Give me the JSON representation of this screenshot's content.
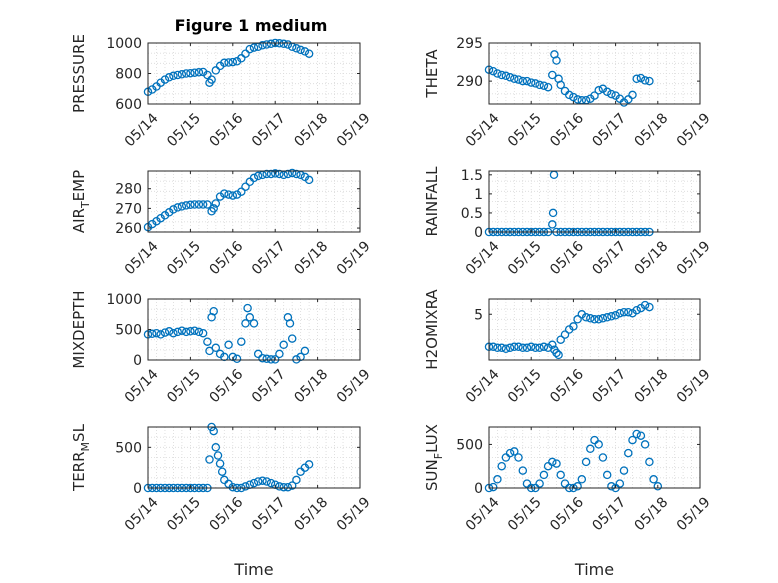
{
  "figure": {
    "title": "Figure 1 medium",
    "marker_color": "#0072BD",
    "grid": "minor dotted"
  },
  "chart_data": [
    {
      "type": "scatter",
      "ylabel": "PRESSURE",
      "xlabel": "",
      "xlim": [
        "05/14",
        "05/19"
      ],
      "ylim": [
        600,
        1000
      ],
      "xticks": [
        "05/14",
        "05/15",
        "05/16",
        "05/17",
        "05/18",
        "05/19"
      ],
      "yticks": [
        "600",
        "800",
        "1000"
      ],
      "points": [
        [
          0,
          680
        ],
        [
          0.1,
          695
        ],
        [
          0.2,
          715
        ],
        [
          0.3,
          740
        ],
        [
          0.4,
          760
        ],
        [
          0.5,
          775
        ],
        [
          0.6,
          785
        ],
        [
          0.7,
          790
        ],
        [
          0.8,
          795
        ],
        [
          0.9,
          800
        ],
        [
          1.0,
          802
        ],
        [
          1.1,
          805
        ],
        [
          1.2,
          808
        ],
        [
          1.3,
          810
        ],
        [
          1.4,
          790
        ],
        [
          1.45,
          740
        ],
        [
          1.5,
          760
        ],
        [
          1.6,
          820
        ],
        [
          1.7,
          850
        ],
        [
          1.8,
          870
        ],
        [
          1.9,
          872
        ],
        [
          2.0,
          875
        ],
        [
          2.1,
          880
        ],
        [
          2.2,
          900
        ],
        [
          2.3,
          930
        ],
        [
          2.4,
          960
        ],
        [
          2.5,
          970
        ],
        [
          2.6,
          975
        ],
        [
          2.7,
          985
        ],
        [
          2.8,
          990
        ],
        [
          2.9,
          995
        ],
        [
          3.0,
          1000
        ],
        [
          3.1,
          998
        ],
        [
          3.2,
          995
        ],
        [
          3.3,
          990
        ],
        [
          3.4,
          975
        ],
        [
          3.5,
          965
        ],
        [
          3.6,
          955
        ],
        [
          3.7,
          945
        ],
        [
          3.8,
          930
        ]
      ]
    },
    {
      "type": "scatter",
      "ylabel": "THETA",
      "xlabel": "",
      "xlim": [
        "05/14",
        "05/19"
      ],
      "ylim": [
        287,
        295
      ],
      "xticks": [
        "05/14",
        "05/15",
        "05/16",
        "05/17",
        "05/18",
        "05/19"
      ],
      "yticks": [
        "290",
        "295"
      ],
      "points": [
        [
          0,
          291.5
        ],
        [
          0.1,
          291.3
        ],
        [
          0.2,
          291
        ],
        [
          0.3,
          290.8
        ],
        [
          0.4,
          290.7
        ],
        [
          0.5,
          290.5
        ],
        [
          0.6,
          290.3
        ],
        [
          0.7,
          290.2
        ],
        [
          0.8,
          290
        ],
        [
          0.9,
          290
        ],
        [
          1.0,
          289.8
        ],
        [
          1.1,
          289.7
        ],
        [
          1.2,
          289.5
        ],
        [
          1.3,
          289.4
        ],
        [
          1.4,
          289.2
        ],
        [
          1.5,
          290.8
        ],
        [
          1.55,
          293.5
        ],
        [
          1.6,
          292.7
        ],
        [
          1.65,
          290.3
        ],
        [
          1.7,
          289.5
        ],
        [
          1.8,
          288.7
        ],
        [
          1.9,
          288.2
        ],
        [
          2.0,
          287.9
        ],
        [
          2.1,
          287.6
        ],
        [
          2.2,
          287.5
        ],
        [
          2.3,
          287.5
        ],
        [
          2.4,
          287.7
        ],
        [
          2.5,
          288.1
        ],
        [
          2.6,
          288.8
        ],
        [
          2.7,
          289
        ],
        [
          2.8,
          288.6
        ],
        [
          2.9,
          288.3
        ],
        [
          3.0,
          288.1
        ],
        [
          3.1,
          287.7
        ],
        [
          3.2,
          287.2
        ],
        [
          3.3,
          287.6
        ],
        [
          3.4,
          288.2
        ],
        [
          3.5,
          290.3
        ],
        [
          3.6,
          290.4
        ],
        [
          3.7,
          290.1
        ],
        [
          3.8,
          290
        ]
      ]
    },
    {
      "type": "scatter",
      "ylabel_base": "AIR",
      "ylabel_sub": "T",
      "ylabel_rest": "EMP",
      "xlabel": "",
      "xlim": [
        "05/14",
        "05/19"
      ],
      "ylim": [
        258,
        289
      ],
      "xticks": [
        "05/14",
        "05/15",
        "05/16",
        "05/17",
        "05/18",
        "05/19"
      ],
      "yticks": [
        "260",
        "270",
        "280"
      ],
      "points": [
        [
          0,
          260.5
        ],
        [
          0.1,
          262
        ],
        [
          0.2,
          263.5
        ],
        [
          0.3,
          265
        ],
        [
          0.4,
          266.5
        ],
        [
          0.5,
          268
        ],
        [
          0.6,
          269.5
        ],
        [
          0.7,
          270.5
        ],
        [
          0.8,
          271
        ],
        [
          0.9,
          271.5
        ],
        [
          1.0,
          271.8
        ],
        [
          1.1,
          272
        ],
        [
          1.2,
          272
        ],
        [
          1.3,
          272
        ],
        [
          1.4,
          272
        ],
        [
          1.5,
          268.5
        ],
        [
          1.55,
          270
        ],
        [
          1.6,
          272.5
        ],
        [
          1.7,
          276
        ],
        [
          1.8,
          277.5
        ],
        [
          1.9,
          277
        ],
        [
          2.0,
          276.5
        ],
        [
          2.1,
          277
        ],
        [
          2.2,
          278.5
        ],
        [
          2.3,
          281
        ],
        [
          2.4,
          283.5
        ],
        [
          2.5,
          285.5
        ],
        [
          2.6,
          286.5
        ],
        [
          2.7,
          287
        ],
        [
          2.8,
          287.5
        ],
        [
          2.9,
          287.5
        ],
        [
          3.0,
          287.8
        ],
        [
          3.1,
          287.5
        ],
        [
          3.2,
          287
        ],
        [
          3.3,
          287.5
        ],
        [
          3.4,
          288
        ],
        [
          3.5,
          287.5
        ],
        [
          3.6,
          287
        ],
        [
          3.7,
          286
        ],
        [
          3.8,
          284.5
        ]
      ]
    },
    {
      "type": "scatter",
      "ylabel": "RAINFALL",
      "xlabel": "",
      "xlim": [
        "05/14",
        "05/19"
      ],
      "ylim": [
        0,
        1.6
      ],
      "xticks": [
        "05/14",
        "05/15",
        "05/16",
        "05/17",
        "05/18",
        "05/19"
      ],
      "yticks": [
        "0",
        "0.5",
        "1",
        "1.5"
      ],
      "points": [
        [
          0,
          0
        ],
        [
          0.1,
          0
        ],
        [
          0.2,
          0
        ],
        [
          0.3,
          0
        ],
        [
          0.4,
          0
        ],
        [
          0.5,
          0
        ],
        [
          0.6,
          0
        ],
        [
          0.7,
          0
        ],
        [
          0.8,
          0
        ],
        [
          0.9,
          0
        ],
        [
          1.0,
          0
        ],
        [
          1.1,
          0
        ],
        [
          1.2,
          0
        ],
        [
          1.3,
          0
        ],
        [
          1.4,
          0
        ],
        [
          1.5,
          0.2
        ],
        [
          1.52,
          0.5
        ],
        [
          1.54,
          1.5
        ],
        [
          1.6,
          0
        ],
        [
          1.7,
          0
        ],
        [
          1.8,
          0
        ],
        [
          1.9,
          0
        ],
        [
          2.0,
          0
        ],
        [
          2.1,
          0
        ],
        [
          2.2,
          0
        ],
        [
          2.3,
          0
        ],
        [
          2.4,
          0
        ],
        [
          2.5,
          0
        ],
        [
          2.6,
          0
        ],
        [
          2.7,
          0
        ],
        [
          2.8,
          0
        ],
        [
          2.9,
          0
        ],
        [
          3.0,
          0
        ],
        [
          3.1,
          0
        ],
        [
          3.2,
          0
        ],
        [
          3.3,
          0
        ],
        [
          3.4,
          0
        ],
        [
          3.5,
          0
        ],
        [
          3.6,
          0
        ],
        [
          3.7,
          0
        ],
        [
          3.8,
          0
        ]
      ]
    },
    {
      "type": "scatter",
      "ylabel": "MIXDEPTH",
      "xlabel": "",
      "xlim": [
        "05/14",
        "05/19"
      ],
      "ylim": [
        0,
        1000
      ],
      "xticks": [
        "05/14",
        "05/15",
        "05/16",
        "05/17",
        "05/18",
        "05/19"
      ],
      "yticks": [
        "0",
        "500",
        "1000"
      ],
      "points": [
        [
          0,
          420
        ],
        [
          0.1,
          430
        ],
        [
          0.2,
          440
        ],
        [
          0.3,
          420
        ],
        [
          0.4,
          450
        ],
        [
          0.5,
          470
        ],
        [
          0.6,
          440
        ],
        [
          0.7,
          460
        ],
        [
          0.8,
          480
        ],
        [
          0.9,
          460
        ],
        [
          1.0,
          470
        ],
        [
          1.1,
          480
        ],
        [
          1.2,
          460
        ],
        [
          1.3,
          440
        ],
        [
          1.4,
          300
        ],
        [
          1.45,
          150
        ],
        [
          1.5,
          700
        ],
        [
          1.55,
          800
        ],
        [
          1.6,
          200
        ],
        [
          1.7,
          100
        ],
        [
          1.8,
          50
        ],
        [
          1.9,
          250
        ],
        [
          2.0,
          50
        ],
        [
          2.1,
          20
        ],
        [
          2.2,
          300
        ],
        [
          2.3,
          600
        ],
        [
          2.35,
          850
        ],
        [
          2.4,
          700
        ],
        [
          2.5,
          600
        ],
        [
          2.6,
          100
        ],
        [
          2.7,
          30
        ],
        [
          2.8,
          20
        ],
        [
          2.9,
          10
        ],
        [
          3.0,
          10
        ],
        [
          3.1,
          100
        ],
        [
          3.2,
          250
        ],
        [
          3.3,
          700
        ],
        [
          3.35,
          600
        ],
        [
          3.4,
          350
        ],
        [
          3.5,
          10
        ],
        [
          3.6,
          50
        ],
        [
          3.7,
          150
        ]
      ]
    },
    {
      "type": "scatter",
      "ylabel": "H2OMIXRA",
      "xlabel": "",
      "xlim": [
        "05/14",
        "05/19"
      ],
      "ylim": [
        0.5,
        6.5
      ],
      "xticks": [
        "05/14",
        "05/15",
        "05/16",
        "05/17",
        "05/18",
        "05/19"
      ],
      "yticks": [
        "5"
      ],
      "points": [
        [
          0,
          1.8
        ],
        [
          0.1,
          1.8
        ],
        [
          0.2,
          1.7
        ],
        [
          0.3,
          1.7
        ],
        [
          0.4,
          1.6
        ],
        [
          0.5,
          1.7
        ],
        [
          0.6,
          1.8
        ],
        [
          0.7,
          1.8
        ],
        [
          0.8,
          1.7
        ],
        [
          0.9,
          1.7
        ],
        [
          1.0,
          1.8
        ],
        [
          1.1,
          1.7
        ],
        [
          1.2,
          1.7
        ],
        [
          1.3,
          1.8
        ],
        [
          1.4,
          1.7
        ],
        [
          1.5,
          2.0
        ],
        [
          1.55,
          1.5
        ],
        [
          1.6,
          1.2
        ],
        [
          1.65,
          1.0
        ],
        [
          1.7,
          2.5
        ],
        [
          1.8,
          3.0
        ],
        [
          1.9,
          3.5
        ],
        [
          2.0,
          3.8
        ],
        [
          2.1,
          4.5
        ],
        [
          2.2,
          5.0
        ],
        [
          2.3,
          4.7
        ],
        [
          2.4,
          4.6
        ],
        [
          2.5,
          4.5
        ],
        [
          2.6,
          4.5
        ],
        [
          2.7,
          4.6
        ],
        [
          2.8,
          4.7
        ],
        [
          2.9,
          4.8
        ],
        [
          3.0,
          4.9
        ],
        [
          3.1,
          5.1
        ],
        [
          3.2,
          5.2
        ],
        [
          3.3,
          5.2
        ],
        [
          3.4,
          5.1
        ],
        [
          3.5,
          5.4
        ],
        [
          3.6,
          5.6
        ],
        [
          3.7,
          5.9
        ],
        [
          3.8,
          5.7
        ]
      ]
    },
    {
      "type": "scatter",
      "ylabel_base": "TERR",
      "ylabel_sub": "M",
      "ylabel_rest": "SL",
      "xlabel": "Time",
      "xlim": [
        "05/14",
        "05/19"
      ],
      "ylim": [
        0,
        750
      ],
      "xticks": [
        "05/14",
        "05/15",
        "05/16",
        "05/17",
        "05/18",
        "05/19"
      ],
      "yticks": [
        "0",
        "500"
      ],
      "points": [
        [
          0,
          0
        ],
        [
          0.1,
          0
        ],
        [
          0.2,
          0
        ],
        [
          0.3,
          0
        ],
        [
          0.4,
          0
        ],
        [
          0.5,
          0
        ],
        [
          0.6,
          0
        ],
        [
          0.7,
          0
        ],
        [
          0.8,
          0
        ],
        [
          0.9,
          0
        ],
        [
          1.0,
          0
        ],
        [
          1.1,
          0
        ],
        [
          1.2,
          0
        ],
        [
          1.3,
          0
        ],
        [
          1.4,
          0
        ],
        [
          1.45,
          350
        ],
        [
          1.5,
          750
        ],
        [
          1.55,
          700
        ],
        [
          1.6,
          500
        ],
        [
          1.65,
          400
        ],
        [
          1.7,
          300
        ],
        [
          1.75,
          200
        ],
        [
          1.8,
          100
        ],
        [
          1.9,
          50
        ],
        [
          2.0,
          10
        ],
        [
          2.1,
          0
        ],
        [
          2.2,
          0
        ],
        [
          2.3,
          20
        ],
        [
          2.4,
          40
        ],
        [
          2.5,
          60
        ],
        [
          2.6,
          80
        ],
        [
          2.7,
          90
        ],
        [
          2.8,
          80
        ],
        [
          2.9,
          60
        ],
        [
          3.0,
          40
        ],
        [
          3.1,
          20
        ],
        [
          3.2,
          10
        ],
        [
          3.3,
          10
        ],
        [
          3.4,
          30
        ],
        [
          3.5,
          100
        ],
        [
          3.6,
          200
        ],
        [
          3.7,
          250
        ],
        [
          3.8,
          290
        ]
      ]
    },
    {
      "type": "scatter",
      "ylabel_base": "SUN",
      "ylabel_sub": "F",
      "ylabel_rest": "LUX",
      "xlabel": "Time",
      "xlim": [
        "05/14",
        "05/19"
      ],
      "ylim": [
        0,
        700
      ],
      "xticks": [
        "05/14",
        "05/15",
        "05/16",
        "05/17",
        "05/18",
        "05/19"
      ],
      "yticks": [
        "0",
        "500"
      ],
      "points": [
        [
          0,
          0
        ],
        [
          0.1,
          10
        ],
        [
          0.2,
          100
        ],
        [
          0.3,
          250
        ],
        [
          0.4,
          350
        ],
        [
          0.5,
          400
        ],
        [
          0.6,
          420
        ],
        [
          0.7,
          350
        ],
        [
          0.8,
          200
        ],
        [
          0.9,
          50
        ],
        [
          1.0,
          0
        ],
        [
          1.1,
          0
        ],
        [
          1.2,
          50
        ],
        [
          1.3,
          150
        ],
        [
          1.4,
          250
        ],
        [
          1.5,
          300
        ],
        [
          1.6,
          280
        ],
        [
          1.7,
          150
        ],
        [
          1.8,
          50
        ],
        [
          1.9,
          0
        ],
        [
          2.0,
          0
        ],
        [
          2.1,
          20
        ],
        [
          2.2,
          100
        ],
        [
          2.3,
          300
        ],
        [
          2.4,
          450
        ],
        [
          2.5,
          550
        ],
        [
          2.6,
          500
        ],
        [
          2.7,
          350
        ],
        [
          2.8,
          150
        ],
        [
          2.9,
          20
        ],
        [
          3.0,
          0
        ],
        [
          3.1,
          50
        ],
        [
          3.2,
          200
        ],
        [
          3.3,
          400
        ],
        [
          3.4,
          550
        ],
        [
          3.5,
          620
        ],
        [
          3.6,
          600
        ],
        [
          3.7,
          500
        ],
        [
          3.8,
          300
        ],
        [
          3.9,
          100
        ],
        [
          4.0,
          20
        ]
      ]
    }
  ]
}
